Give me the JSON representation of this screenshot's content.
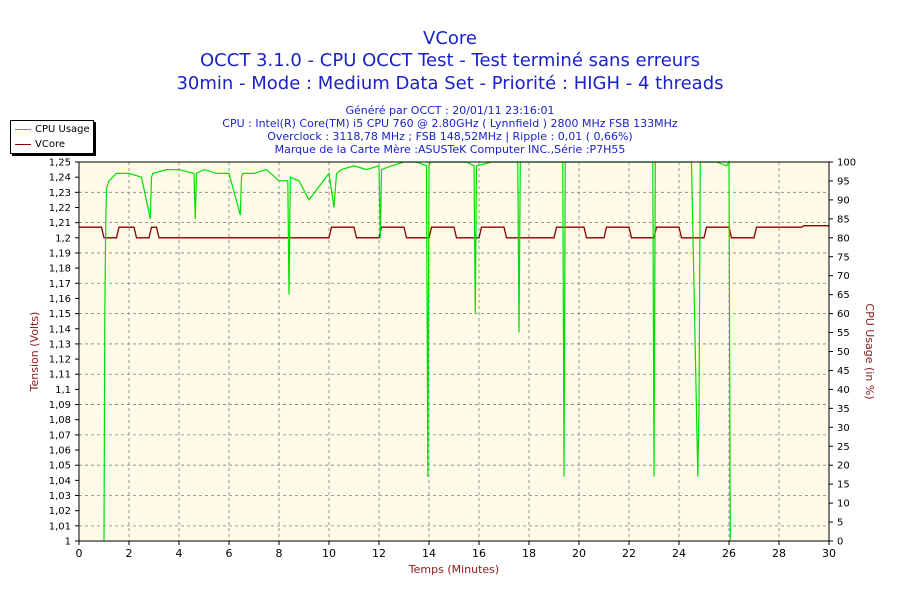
{
  "chart_data": {
    "type": "line",
    "title": "VCore",
    "subtitle_lines": [
      "OCCT 3.1.0 - CPU OCCT Test - Test terminé sans erreurs",
      "30min - Mode : Medium Data Set - Priorité : HIGH - 4 threads"
    ],
    "info_lines": [
      "Généré par OCCT : 20/01/11 23:16:01",
      "CPU : Intel(R) Core(TM) i5 CPU 760 @ 2.80GHz ( Lynnfield ) 2800 MHz FSB 133MHz",
      "Overclock : 3118,78 MHz ; FSB 148,52MHz | Ripple : 0,01 ( 0,66%)",
      "Marque de la Carte Mère :ASUSTeK Computer INC.,Série :P7H55"
    ],
    "xlabel": "Temps (Minutes)",
    "ylabel": "Tension (Volts)",
    "y2label": "CPU Usage (in %)",
    "xlim": [
      0,
      30
    ],
    "ylim": [
      1,
      1.25
    ],
    "y2lim": [
      0,
      100
    ],
    "x_ticks": [
      "0",
      "2",
      "4",
      "6",
      "8",
      "10",
      "12",
      "14",
      "16",
      "18",
      "20",
      "22",
      "24",
      "26",
      "28",
      "30"
    ],
    "y_ticks": [
      "1",
      "1,01",
      "1,02",
      "1,03",
      "1,04",
      "1,05",
      "1,06",
      "1,07",
      "1,08",
      "1,09",
      "1,1",
      "1,11",
      "1,12",
      "1,13",
      "1,14",
      "1,15",
      "1,16",
      "1,17",
      "1,18",
      "1,19",
      "1,2",
      "1,21",
      "1,22",
      "1,23",
      "1,24",
      "1,25"
    ],
    "y2_ticks": [
      "0",
      "5",
      "10",
      "15",
      "20",
      "25",
      "30",
      "35",
      "40",
      "45",
      "50",
      "55",
      "60",
      "65",
      "70",
      "75",
      "80",
      "85",
      "90",
      "95",
      "100"
    ],
    "grid": true,
    "legend_position": "top-left-outside",
    "colors": {
      "cpu_usage": "#00e000",
      "vcore": "#8b0000",
      "background": "#fffbe8",
      "grid": "#808080"
    },
    "series": [
      {
        "name": "VCore",
        "axis": "left",
        "x": [
          0,
          0.9,
          1.0,
          1.5,
          1.6,
          2.2,
          2.3,
          2.8,
          2.9,
          3.1,
          3.2,
          10,
          10.1,
          11.0,
          11.1,
          12,
          12.1,
          13,
          13.1,
          14,
          14.1,
          15,
          15.1,
          16,
          16.1,
          17,
          17.1,
          19,
          19.1,
          20.2,
          20.3,
          21,
          21.1,
          22,
          22.1,
          23,
          23.1,
          24,
          24.1,
          25,
          25.1,
          26,
          26.1,
          27,
          27.1,
          28.9,
          29.0,
          30
        ],
        "y": [
          1.207,
          1.207,
          1.2,
          1.2,
          1.207,
          1.207,
          1.2,
          1.2,
          1.207,
          1.207,
          1.2,
          1.2,
          1.207,
          1.207,
          1.2,
          1.2,
          1.207,
          1.207,
          1.2,
          1.2,
          1.207,
          1.207,
          1.2,
          1.2,
          1.207,
          1.207,
          1.2,
          1.2,
          1.207,
          1.207,
          1.2,
          1.2,
          1.207,
          1.207,
          1.2,
          1.2,
          1.207,
          1.207,
          1.2,
          1.2,
          1.207,
          1.207,
          1.2,
          1.2,
          1.207,
          1.207,
          1.208,
          1.208
        ]
      },
      {
        "name": "CPU Usage",
        "axis": "right",
        "x": [
          1.0,
          1.03,
          1.07,
          1.1,
          1.2,
          1.5,
          2.0,
          2.5,
          2.85,
          2.9,
          2.95,
          3.5,
          4.0,
          4.6,
          4.65,
          4.7,
          5.0,
          5.5,
          6.0,
          6.45,
          6.5,
          6.55,
          7.0,
          7.5,
          8.0,
          8.35,
          8.4,
          8.45,
          8.8,
          9.2,
          10.0,
          10.2,
          10.3,
          10.5,
          11.0,
          11.5,
          12.0,
          12.05,
          12.1,
          12.5,
          13.0,
          13.5,
          13.9,
          13.95,
          14.0,
          14.05,
          14.5,
          15.0,
          15.5,
          15.8,
          15.85,
          15.9,
          16.5,
          17.0,
          17.55,
          17.6,
          17.65,
          18.0,
          18.5,
          19.0,
          19.35,
          19.4,
          19.45,
          20.0,
          20.5,
          21.0,
          21.5,
          22.0,
          22.5,
          22.95,
          23.0,
          23.05,
          23.5,
          24.0,
          24.5,
          24.75,
          24.8,
          24.85,
          25.0,
          25.5,
          25.9,
          26.0,
          26.05
        ],
        "y": [
          0,
          60,
          85,
          93,
          95,
          97,
          97,
          96,
          85,
          96,
          97,
          98,
          98,
          97,
          85,
          97,
          98,
          97,
          97,
          86,
          96,
          97,
          97,
          98,
          95,
          95,
          65,
          96,
          95,
          90,
          97,
          88,
          97,
          98,
          99,
          98,
          99,
          80,
          98,
          99,
          100,
          100,
          99,
          17,
          99,
          100,
          100,
          100,
          100,
          99,
          60,
          99,
          100,
          100,
          100,
          55,
          100,
          100,
          100,
          100,
          100,
          17,
          100,
          100,
          100,
          100,
          100,
          100,
          100,
          100,
          17,
          100,
          100,
          100,
          100,
          17,
          35,
          100,
          100,
          100,
          99,
          100,
          0
        ]
      }
    ]
  }
}
